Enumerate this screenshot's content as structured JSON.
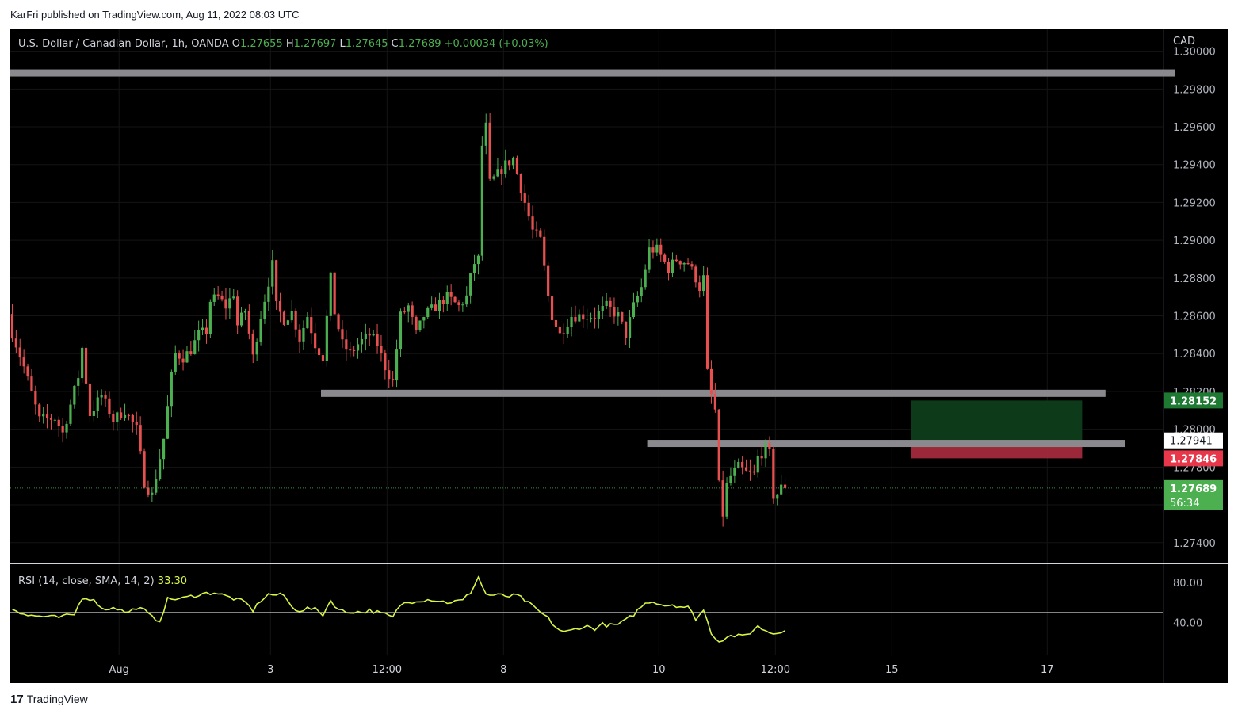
{
  "header": {
    "published": "KarFri published on TradingView.com, Aug 11, 2022 08:03 UTC"
  },
  "legend": {
    "symbol": "U.S. Dollar / Canadian Dollar, 1h, OANDA",
    "o_label": "O",
    "o_value": "1.27655",
    "h_label": "H",
    "h_value": "1.27697",
    "l_label": "L",
    "l_value": "1.27645",
    "c_label": "C",
    "c_value": "1.27689",
    "change": "+0.00034 (+0.03%)"
  },
  "rsi_legend": {
    "label": "RSI (14, close, SMA, 14, 2)",
    "value": "33.30"
  },
  "price_axis": {
    "currency": "CAD",
    "ticks": [
      "1.30000",
      "1.29800",
      "1.29600",
      "1.29400",
      "1.29200",
      "1.29000",
      "1.28800",
      "1.28600",
      "1.28400",
      "1.28200",
      "1.28000",
      "1.27800",
      "1.27600",
      "1.27400"
    ],
    "tick_values": [
      1.3,
      1.298,
      1.296,
      1.294,
      1.292,
      1.29,
      1.288,
      1.286,
      1.284,
      1.282,
      1.28,
      1.278,
      1.276,
      1.274
    ],
    "labels": [
      {
        "text": "1.28152",
        "value": 1.28152,
        "bg": "#1e7a32",
        "fg": "#ffffff"
      },
      {
        "text": "1.27941",
        "value": 1.27941,
        "bg": "#ffffff",
        "fg": "#131722"
      },
      {
        "text": "1.27846",
        "value": 1.27846,
        "bg": "#e8374a",
        "fg": "#ffffff"
      },
      {
        "text": "1.27689",
        "value": 1.27689,
        "bg": "#4caf50",
        "fg": "#ffffff"
      }
    ],
    "countdown": "56:34"
  },
  "rsi_axis": {
    "ticks": [
      "80.00",
      "40.00"
    ],
    "tick_values": [
      80,
      40
    ]
  },
  "time_axis": {
    "ticks": [
      "Aug",
      "3",
      "12:00",
      "8",
      "10",
      "12:00",
      "15",
      "17"
    ],
    "tick_bars": [
      28,
      67,
      97,
      127,
      167,
      197,
      227,
      267
    ]
  },
  "footer": {
    "brand": "TradingView",
    "logo_mark": "17"
  },
  "colors": {
    "up": "#4caf50",
    "down": "#e8504f",
    "level": "#8a8a8e",
    "rsi": "#d7f542",
    "bg": "#000000"
  },
  "chart_data": {
    "type": "candlestick",
    "price_range": [
      1.2729,
      1.3012
    ],
    "levels": [
      {
        "price": 1.29885,
        "from_bar": 0,
        "to_bar": 300
      },
      {
        "price": 1.2819,
        "from_bar": 80,
        "to_bar": 282
      },
      {
        "price": 1.27925,
        "from_bar": 164,
        "to_bar": 287
      }
    ],
    "position": {
      "entry": 1.27941,
      "target": 1.28152,
      "stop": 1.27846,
      "from_bar": 232,
      "to_bar": 276
    },
    "price_path": [
      [
        0,
        1.2857
      ],
      [
        4,
        1.2833
      ],
      [
        8,
        1.2805
      ],
      [
        12,
        1.2806
      ],
      [
        14,
        1.2798
      ],
      [
        18,
        1.2828
      ],
      [
        19,
        1.2843
      ],
      [
        21,
        1.2808
      ],
      [
        24,
        1.2818
      ],
      [
        27,
        1.2805
      ],
      [
        30,
        1.281
      ],
      [
        33,
        1.28
      ],
      [
        35,
        1.2772
      ],
      [
        37,
        1.2765
      ],
      [
        39,
        1.2785
      ],
      [
        40,
        1.2795
      ],
      [
        42,
        1.2828
      ],
      [
        43,
        1.284
      ],
      [
        45,
        1.2838
      ],
      [
        47,
        1.2842
      ],
      [
        49,
        1.285
      ],
      [
        51,
        1.2852
      ],
      [
        52,
        1.2868
      ],
      [
        54,
        1.287
      ],
      [
        56,
        1.2865
      ],
      [
        58,
        1.2872
      ],
      [
        59,
        1.2855
      ],
      [
        61,
        1.2863
      ],
      [
        63,
        1.2838
      ],
      [
        65,
        1.286
      ],
      [
        67,
        1.2878
      ],
      [
        68,
        1.2887
      ],
      [
        69,
        1.2865
      ],
      [
        71,
        1.2858
      ],
      [
        73,
        1.2862
      ],
      [
        75,
        1.2848
      ],
      [
        77,
        1.286
      ],
      [
        79,
        1.2845
      ],
      [
        81,
        1.2838
      ],
      [
        83,
        1.288
      ],
      [
        84,
        1.2862
      ],
      [
        86,
        1.2845
      ],
      [
        88,
        1.284
      ],
      [
        90,
        1.2845
      ],
      [
        93,
        1.285
      ],
      [
        95,
        1.2845
      ],
      [
        97,
        1.2833
      ],
      [
        99,
        1.2825
      ],
      [
        101,
        1.286
      ],
      [
        103,
        1.2865
      ],
      [
        105,
        1.285
      ],
      [
        107,
        1.286
      ],
      [
        110,
        1.2865
      ],
      [
        113,
        1.287
      ],
      [
        116,
        1.2865
      ],
      [
        118,
        1.287
      ],
      [
        119,
        1.288
      ],
      [
        120,
        1.2888
      ],
      [
        121,
        1.289
      ],
      [
        122,
        1.295
      ],
      [
        123,
        1.296
      ],
      [
        124,
        1.293
      ],
      [
        126,
        1.2935
      ],
      [
        128,
        1.294
      ],
      [
        130,
        1.2943
      ],
      [
        131,
        1.2935
      ],
      [
        133,
        1.292
      ],
      [
        135,
        1.2905
      ],
      [
        137,
        1.29
      ],
      [
        139,
        1.287
      ],
      [
        140,
        1.286
      ],
      [
        142,
        1.285
      ],
      [
        145,
        1.286
      ],
      [
        148,
        1.286
      ],
      [
        151,
        1.286
      ],
      [
        154,
        1.2865
      ],
      [
        157,
        1.286
      ],
      [
        159,
        1.285
      ],
      [
        161,
        1.2865
      ],
      [
        163,
        1.2875
      ],
      [
        165,
        1.2895
      ],
      [
        167,
        1.2895
      ],
      [
        170,
        1.2885
      ],
      [
        172,
        1.289
      ],
      [
        175,
        1.2888
      ],
      [
        177,
        1.288
      ],
      [
        178,
        1.2875
      ],
      [
        179,
        1.288
      ],
      [
        180,
        1.283
      ],
      [
        181,
        1.2818
      ],
      [
        182,
        1.281
      ],
      [
        183,
        1.277
      ],
      [
        184,
        1.2755
      ],
      [
        185,
        1.277
      ],
      [
        186,
        1.2775
      ],
      [
        188,
        1.278
      ],
      [
        190,
        1.2777
      ],
      [
        192,
        1.2776
      ],
      [
        193,
        1.2785
      ],
      [
        195,
        1.279
      ],
      [
        196,
        1.2787
      ],
      [
        197,
        1.2765
      ],
      [
        198,
        1.2766
      ],
      [
        199,
        1.2769
      ]
    ],
    "rsi_path": [
      [
        0,
        54
      ],
      [
        4,
        47
      ],
      [
        8,
        46
      ],
      [
        12,
        45
      ],
      [
        16,
        48
      ],
      [
        18,
        65
      ],
      [
        20,
        64
      ],
      [
        22,
        59
      ],
      [
        24,
        52
      ],
      [
        26,
        56
      ],
      [
        28,
        52
      ],
      [
        30,
        50
      ],
      [
        32,
        55
      ],
      [
        34,
        52
      ],
      [
        36,
        45
      ],
      [
        38,
        42
      ],
      [
        40,
        63
      ],
      [
        44,
        64
      ],
      [
        48,
        68
      ],
      [
        52,
        70
      ],
      [
        56,
        65
      ],
      [
        60,
        60
      ],
      [
        62,
        52
      ],
      [
        64,
        62
      ],
      [
        66,
        68
      ],
      [
        70,
        67
      ],
      [
        72,
        55
      ],
      [
        74,
        52
      ],
      [
        76,
        54
      ],
      [
        78,
        53
      ],
      [
        80,
        48
      ],
      [
        82,
        62
      ],
      [
        84,
        53
      ],
      [
        86,
        50
      ],
      [
        88,
        51
      ],
      [
        90,
        50
      ],
      [
        92,
        52
      ],
      [
        94,
        50
      ],
      [
        96,
        48
      ],
      [
        98,
        45
      ],
      [
        100,
        58
      ],
      [
        102,
        60
      ],
      [
        104,
        62
      ],
      [
        108,
        63
      ],
      [
        112,
        60
      ],
      [
        116,
        62
      ],
      [
        118,
        70
      ],
      [
        120,
        85
      ],
      [
        122,
        68
      ],
      [
        124,
        67
      ],
      [
        126,
        67
      ],
      [
        128,
        66
      ],
      [
        130,
        67
      ],
      [
        132,
        62
      ],
      [
        134,
        56
      ],
      [
        136,
        50
      ],
      [
        138,
        44
      ],
      [
        140,
        35
      ],
      [
        142,
        30
      ],
      [
        144,
        32
      ],
      [
        146,
        35
      ],
      [
        148,
        36
      ],
      [
        150,
        34
      ],
      [
        152,
        38
      ],
      [
        154,
        37
      ],
      [
        156,
        38
      ],
      [
        158,
        42
      ],
      [
        160,
        48
      ],
      [
        162,
        56
      ],
      [
        164,
        61
      ],
      [
        166,
        60
      ],
      [
        168,
        57
      ],
      [
        170,
        58
      ],
      [
        172,
        56
      ],
      [
        174,
        55
      ],
      [
        176,
        44
      ],
      [
        178,
        52
      ],
      [
        180,
        30
      ],
      [
        182,
        21
      ],
      [
        184,
        26
      ],
      [
        186,
        27
      ],
      [
        188,
        26
      ],
      [
        190,
        30
      ],
      [
        192,
        36
      ],
      [
        194,
        32
      ],
      [
        196,
        29
      ],
      [
        199,
        33
      ]
    ],
    "rsi_range": [
      8,
      98
    ],
    "rsi_midline": 50
  }
}
